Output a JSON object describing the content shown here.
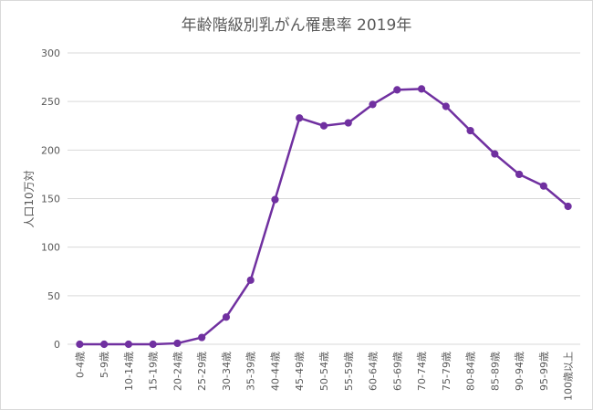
{
  "chart_data": {
    "type": "line",
    "title": "年齢階級別乳がん罹患率 2019年",
    "xlabel": "",
    "ylabel": "人口10万対",
    "categories": [
      "0-4歳",
      "5-9歳",
      "10-14歳",
      "15-19歳",
      "20-24歳",
      "25-29歳",
      "30-34歳",
      "35-39歳",
      "40-44歳",
      "45-49歳",
      "50-54歳",
      "55-59歳",
      "60-64歳",
      "65-69歳",
      "70-74歳",
      "75-79歳",
      "80-84歳",
      "85-89歳",
      "90-94歳",
      "95-99歳",
      "100歳以上"
    ],
    "series": [
      {
        "values": [
          0,
          0,
          0,
          0,
          1,
          7,
          28,
          66,
          149,
          233,
          225,
          228,
          247,
          262,
          263,
          245,
          220,
          196,
          175,
          163,
          142
        ]
      }
    ],
    "ylim": [
      0,
      300
    ],
    "yticks": [
      0,
      50,
      100,
      150,
      200,
      250,
      300
    ],
    "grid": true,
    "legend": "none",
    "colors": {
      "line": "#7030a0",
      "marker": "#7030a0",
      "grid": "#d9d9d9",
      "text": "#595959"
    }
  }
}
